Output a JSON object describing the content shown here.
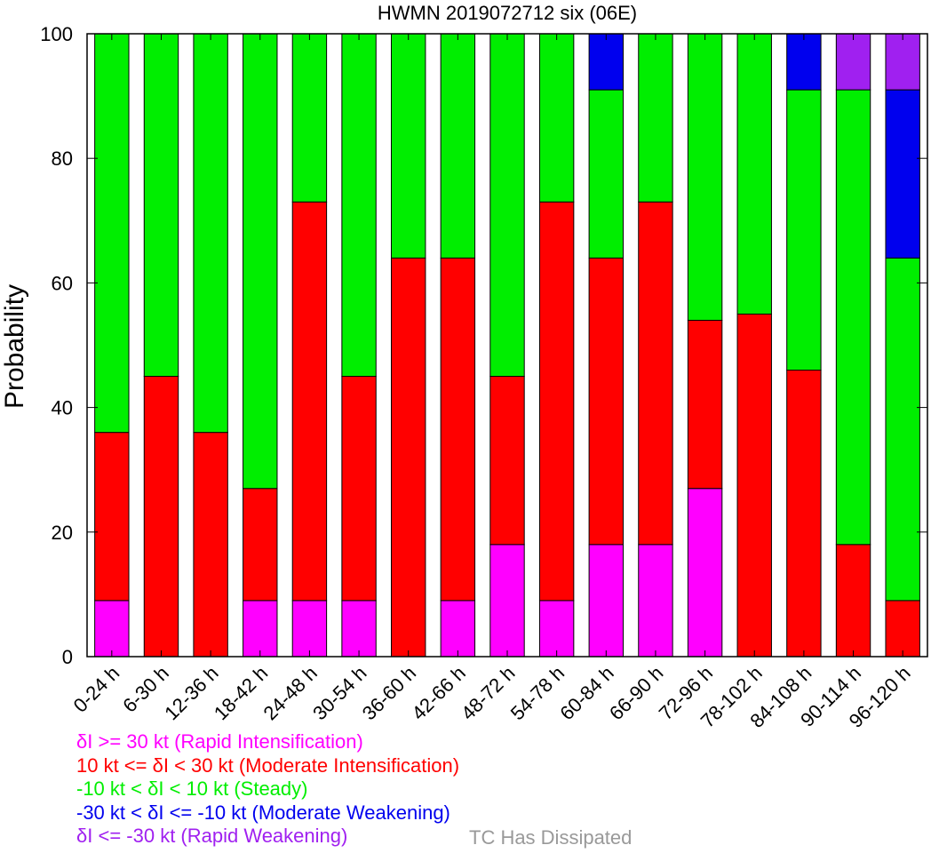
{
  "chart_data": {
    "type": "bar",
    "stacked": true,
    "title": "HWMN 2019072712 six (06E)",
    "ylabel": "Probability",
    "xlabel": "",
    "ylim": [
      0,
      100
    ],
    "yticks": [
      "0",
      "20",
      "40",
      "60",
      "80",
      "100"
    ],
    "categories": [
      "0-24 h",
      "6-30 h",
      "12-36 h",
      "18-42 h",
      "24-48 h",
      "30-54 h",
      "36-60 h",
      "42-66 h",
      "48-72 h",
      "54-78 h",
      "60-84 h",
      "66-90 h",
      "72-96 h",
      "78-102 h",
      "84-108 h",
      "90-114 h",
      "96-120 h"
    ],
    "series": [
      {
        "key": "ri",
        "color": "#ff00ff",
        "values": [
          9,
          0,
          0,
          9,
          9,
          9,
          0,
          9,
          18,
          9,
          18,
          18,
          27,
          0,
          0,
          0,
          0
        ]
      },
      {
        "key": "mi",
        "color": "#ff0000",
        "values": [
          27,
          45,
          36,
          18,
          64,
          36,
          64,
          55,
          27,
          64,
          46,
          55,
          27,
          55,
          46,
          18,
          9
        ]
      },
      {
        "key": "st",
        "color": "#00ee00",
        "values": [
          64,
          55,
          64,
          73,
          27,
          55,
          36,
          36,
          55,
          27,
          27,
          27,
          46,
          45,
          45,
          73,
          55
        ]
      },
      {
        "key": "mw",
        "color": "#0000ee",
        "values": [
          0,
          0,
          0,
          0,
          0,
          0,
          0,
          0,
          0,
          0,
          9,
          0,
          0,
          0,
          9,
          0,
          27
        ]
      },
      {
        "key": "rw",
        "color": "#a020f0",
        "values": [
          0,
          0,
          0,
          0,
          0,
          0,
          0,
          0,
          0,
          0,
          0,
          0,
          0,
          0,
          0,
          9,
          9
        ]
      }
    ]
  },
  "legend": [
    {
      "text": "δI >= 30 kt (Rapid Intensification)",
      "color": "#ff00ff"
    },
    {
      "text": "10 kt <= δI < 30 kt (Moderate Intensification)",
      "color": "#ff0000"
    },
    {
      "text": "-10 kt < δI < 10 kt (Steady)",
      "color": "#00ee00"
    },
    {
      "text": "-30 kt < δI <= -10 kt (Moderate Weakening)",
      "color": "#0000ee"
    },
    {
      "text": "δI <= -30 kt (Rapid Weakening)",
      "color": "#a020f0"
    }
  ],
  "dissipated_label": "TC Has Dissipated",
  "dissipated_color": "#999999"
}
